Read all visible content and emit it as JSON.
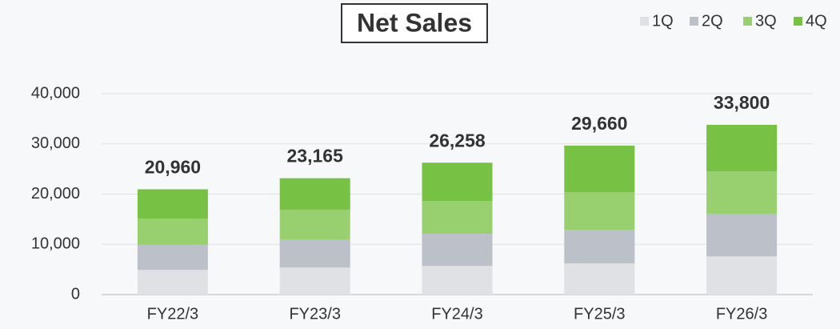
{
  "chart_data": {
    "type": "stacked-bar",
    "title": "Net Sales",
    "categories": [
      "FY22/3",
      "FY23/3",
      "FY24/3",
      "FY25/3",
      "FY26/3"
    ],
    "series": [
      {
        "name": "1Q",
        "color": "#dfe1e5",
        "values": [
          4900,
          5400,
          5700,
          6200,
          7600
        ]
      },
      {
        "name": "2Q",
        "color": "#bcc0c8",
        "values": [
          5000,
          5600,
          6400,
          6700,
          8500
        ]
      },
      {
        "name": "3Q",
        "color": "#98d070",
        "values": [
          5200,
          5900,
          6500,
          7500,
          8400
        ]
      },
      {
        "name": "4Q",
        "color": "#77c145",
        "values": [
          5860,
          6265,
          7658,
          9260,
          9300
        ]
      }
    ],
    "totals": [
      20960,
      23165,
      26258,
      29660,
      33800
    ],
    "total_labels": [
      "20,960",
      "23,165",
      "26,258",
      "29,660",
      "33,800"
    ],
    "ylim": [
      0,
      40000
    ],
    "yticks": [
      0,
      {
        "value": 10000,
        "label": "10,000"
      },
      {
        "value": 20000,
        "label": "20,000"
      },
      {
        "value": 30000,
        "label": "30,000"
      },
      {
        "value": 40000,
        "label": "40,000"
      }
    ],
    "grid": true,
    "legend": "top-right"
  }
}
